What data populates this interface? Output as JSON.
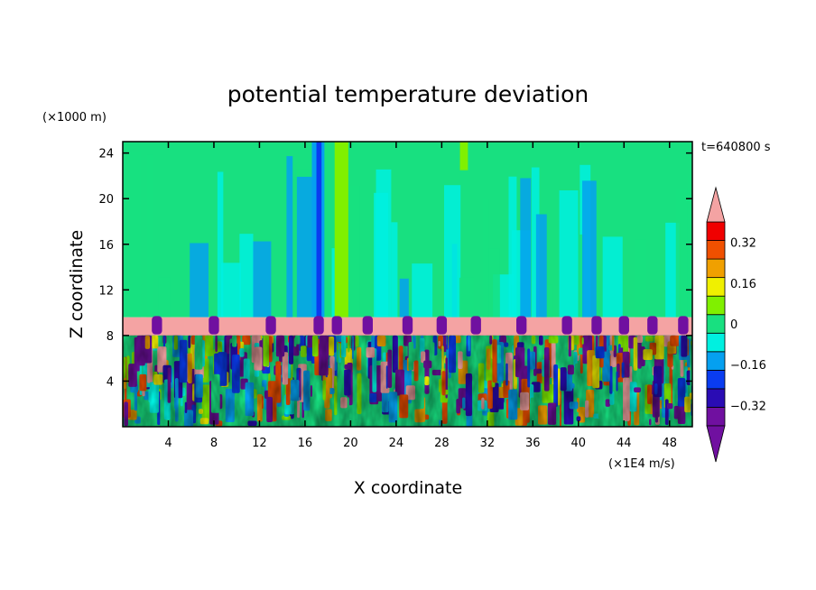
{
  "chart_data": {
    "type": "heatmap",
    "title": "potential temperature deviation",
    "xlabel": "X coordinate",
    "ylabel": "Z coordinate",
    "x_unit": "(×1E4 m/s)",
    "y_unit": "(×1000 m)",
    "time_label": "t=640800 s",
    "xlim": [
      0,
      50
    ],
    "ylim": [
      0,
      25
    ],
    "x_ticks": [
      4,
      8,
      12,
      16,
      20,
      24,
      28,
      32,
      36,
      40,
      44,
      48
    ],
    "y_ticks": [
      4,
      8,
      12,
      16,
      20,
      24
    ],
    "colorbar": {
      "levels": [
        -0.4,
        -0.32,
        -0.24,
        -0.16,
        -0.08,
        0,
        0.08,
        0.16,
        0.24,
        0.32,
        0.4
      ],
      "tick_labels": [
        "0.32",
        "0.16",
        "0",
        "−0.16",
        "−0.32"
      ],
      "tick_values": [
        0.32,
        0.16,
        0,
        -0.16,
        -0.32
      ],
      "colors": [
        "#7010a0",
        "#2a0cb4",
        "#0a3cf0",
        "#05a0f0",
        "#00f0e0",
        "#18e080",
        "#80f000",
        "#f0f000",
        "#f0a000",
        "#f05000",
        "#f00000"
      ],
      "under_color": "#7010a0",
      "over_color": "#f4a3a3"
    },
    "bands": {
      "upper_zone_z": [
        9.6,
        25
      ],
      "inversion_layer_z": [
        8.0,
        9.6
      ],
      "turbulent_zone_z": [
        0,
        8.0
      ]
    }
  }
}
